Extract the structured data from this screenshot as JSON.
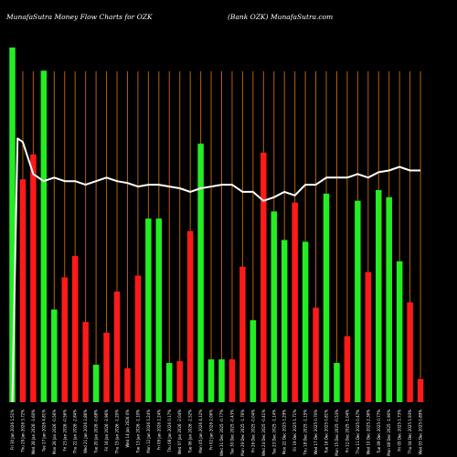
{
  "header": {
    "left": "MunafaSutra  Money Flow  Charts for OZK",
    "right": "(Bank OZK) MunafaSutra.com"
  },
  "chart_data": {
    "type": "bar",
    "title": "MunafaSutra  Money Flow  Charts for OZK",
    "subtitle": "(Bank OZK) MunafaSutra.com",
    "ylim": [
      0,
      100
    ],
    "colors": {
      "up": "#22ee22",
      "down": "#ff1a1a",
      "grid": "#b86000",
      "line": "#ffffff",
      "background": "#000000"
    },
    "bars": [
      {
        "label": "Fri 30 Jan 2026 1.51%",
        "value": 99.5,
        "dir": "up"
      },
      {
        "label": "Thu 29 Jan 2026 3.72%",
        "value": 62.5,
        "dir": "down"
      },
      {
        "label": "Wed 28 Jan 2026 -1.60%",
        "value": 69.5,
        "dir": "down"
      },
      {
        "label": "Tue 27 Jan 2026 4.81%",
        "value": 93.0,
        "dir": "up"
      },
      {
        "label": "Mon 26 Jan 2026 -0.56%",
        "value": 26.0,
        "dir": "up"
      },
      {
        "label": "Fri 23 Jan 2026 -0.56%",
        "value": 35.0,
        "dir": "down"
      },
      {
        "label": "Thu 22 Jan 2026 -2.84%",
        "value": 41.0,
        "dir": "down"
      },
      {
        "label": "Wed 21 Jan 2026 2.86%",
        "value": 22.5,
        "dir": "down"
      },
      {
        "label": "Tue 20 Jan 2026 -0.68%",
        "value": 10.5,
        "dir": "up"
      },
      {
        "label": "Fri 16 Jan 2026 -2.96%",
        "value": 19.5,
        "dir": "down"
      },
      {
        "label": "Thu 15 Jan 2026 -1.20%",
        "value": 31.0,
        "dir": "down"
      },
      {
        "label": "Wed 14 Jan 2026 0%",
        "value": 9.5,
        "dir": "down"
      },
      {
        "label": "Tue 13 Jan 2026 -1.10%",
        "value": 35.5,
        "dir": "down"
      },
      {
        "label": "Mon 12 Jan 2026 1.24%",
        "value": 51.5,
        "dir": "up"
      },
      {
        "label": "Fri 09 Jan 2026 2.24%",
        "value": 51.5,
        "dir": "up"
      },
      {
        "label": "Thu 08 Jan 2026 0.17%",
        "value": 11.0,
        "dir": "up"
      },
      {
        "label": "Wed 07 Jan 2026 -2.04%",
        "value": 11.5,
        "dir": "down"
      },
      {
        "label": "Tue 06 Jan 2026 -2.52%",
        "value": 48.0,
        "dir": "down"
      },
      {
        "label": "Mon 05 Jan 2026 4.12%",
        "value": 72.5,
        "dir": "up"
      },
      {
        "label": "Fri 02 Jan 2026 2.06%",
        "value": 12.0,
        "dir": "up"
      },
      {
        "label": "Wed 31 Dec 2025 -0.77%",
        "value": 12.0,
        "dir": "up"
      },
      {
        "label": "Tue 30 Dec 2025 -0.43%",
        "value": 12.0,
        "dir": "down"
      },
      {
        "label": "Mon 29 Dec 2025 -1.76%",
        "value": 38.0,
        "dir": "down"
      },
      {
        "label": "Fri 26 Dec 2025 -0.04%",
        "value": 23.0,
        "dir": "up"
      },
      {
        "label": "Wed 24 Dec 2025 -0.41%",
        "value": 70.0,
        "dir": "down"
      },
      {
        "label": "Tue 23 Dec 2025 -1.14%",
        "value": 53.5,
        "dir": "up"
      },
      {
        "label": "Mon 22 Dec 2025 1.29%",
        "value": 45.5,
        "dir": "up"
      },
      {
        "label": "Fri 19 Dec 2025 1.71%",
        "value": 56.0,
        "dir": "down"
      },
      {
        "label": "Thu 18 Dec 2025 -1.15%",
        "value": 45.0,
        "dir": "up"
      },
      {
        "label": "Wed 17 Dec 2025 0.70%",
        "value": 26.5,
        "dir": "down"
      },
      {
        "label": "Tue 16 Dec 2025 0.81%",
        "value": 58.5,
        "dir": "up"
      },
      {
        "label": "Mon 15 Dec 2025 -0.53%",
        "value": 11.0,
        "dir": "up"
      },
      {
        "label": "Fri 12 Dec 2025 -1.04%",
        "value": 18.5,
        "dir": "down"
      },
      {
        "label": "Thu 11 Dec 2025 0.47%",
        "value": 56.5,
        "dir": "up"
      },
      {
        "label": "Wed 10 Dec 2025 2.36%",
        "value": 36.5,
        "dir": "down"
      },
      {
        "label": "Tue 09 Dec 2025 0.77%",
        "value": 59.5,
        "dir": "up"
      },
      {
        "label": "Mon 08 Dec 2025 -1.90%",
        "value": 57.5,
        "dir": "up"
      },
      {
        "label": "Fri 05 Dec 2025 1.73%",
        "value": 39.5,
        "dir": "up"
      },
      {
        "label": "Thu 04 Dec 2025 1.93%",
        "value": 28.0,
        "dir": "down"
      },
      {
        "label": "Wed 03 Dec 2025 0.89%",
        "value": 6.5,
        "dir": "down"
      }
    ],
    "price_line": [
      {
        "x": 0,
        "y": 0
      },
      {
        "x": 0.5,
        "y": 74
      },
      {
        "x": 1,
        "y": 73
      },
      {
        "x": 2,
        "y": 64
      },
      {
        "x": 3,
        "y": 62
      },
      {
        "x": 4,
        "y": 63
      },
      {
        "x": 5,
        "y": 62
      },
      {
        "x": 6,
        "y": 62
      },
      {
        "x": 7,
        "y": 61
      },
      {
        "x": 8,
        "y": 62
      },
      {
        "x": 9,
        "y": 63
      },
      {
        "x": 10,
        "y": 62
      },
      {
        "x": 11,
        "y": 61.5
      },
      {
        "x": 12,
        "y": 60.5
      },
      {
        "x": 13,
        "y": 61
      },
      {
        "x": 14,
        "y": 61
      },
      {
        "x": 15,
        "y": 60.5
      },
      {
        "x": 16,
        "y": 60
      },
      {
        "x": 17,
        "y": 59
      },
      {
        "x": 18,
        "y": 60
      },
      {
        "x": 19,
        "y": 60.5
      },
      {
        "x": 20,
        "y": 61
      },
      {
        "x": 21,
        "y": 61
      },
      {
        "x": 22,
        "y": 59
      },
      {
        "x": 23,
        "y": 59
      },
      {
        "x": 24,
        "y": 56.5
      },
      {
        "x": 25,
        "y": 57.5
      },
      {
        "x": 26,
        "y": 59
      },
      {
        "x": 27,
        "y": 58
      },
      {
        "x": 28,
        "y": 61
      },
      {
        "x": 29,
        "y": 61
      },
      {
        "x": 30,
        "y": 63
      },
      {
        "x": 31,
        "y": 63
      },
      {
        "x": 32,
        "y": 63
      },
      {
        "x": 33,
        "y": 64
      },
      {
        "x": 34,
        "y": 63
      },
      {
        "x": 35,
        "y": 64.5
      },
      {
        "x": 36,
        "y": 65
      },
      {
        "x": 37,
        "y": 66
      },
      {
        "x": 38,
        "y": 65
      },
      {
        "x": 39,
        "y": 65
      }
    ],
    "grid": true
  }
}
